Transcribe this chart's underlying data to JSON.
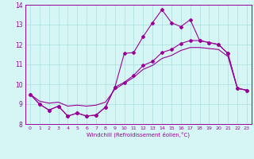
{
  "xlabel": "Windchill (Refroidissement éolien,°C)",
  "bg_color": "#d6f5f5",
  "grid_color": "#aadddd",
  "line_color": "#990099",
  "xlim": [
    -0.5,
    23.5
  ],
  "ylim": [
    8,
    14
  ],
  "yticks": [
    8,
    9,
    10,
    11,
    12,
    13,
    14
  ],
  "xticks": [
    0,
    1,
    2,
    3,
    4,
    5,
    6,
    7,
    8,
    9,
    10,
    11,
    12,
    13,
    14,
    15,
    16,
    17,
    18,
    19,
    20,
    21,
    22,
    23
  ],
  "hours": [
    0,
    1,
    2,
    3,
    4,
    5,
    6,
    7,
    8,
    9,
    10,
    11,
    12,
    13,
    14,
    15,
    16,
    17,
    18,
    19,
    20,
    21,
    22,
    23
  ],
  "temp": [
    9.5,
    9.0,
    8.7,
    8.9,
    8.4,
    8.55,
    8.4,
    8.45,
    8.85,
    9.85,
    11.55,
    11.6,
    12.4,
    13.1,
    13.75,
    13.1,
    12.9,
    13.25,
    12.2,
    12.1,
    12.0,
    11.55,
    9.8,
    9.7
  ],
  "windchill": [
    9.5,
    9.0,
    8.7,
    8.9,
    8.4,
    8.55,
    8.4,
    8.45,
    8.85,
    9.85,
    10.1,
    10.45,
    10.95,
    11.15,
    11.6,
    11.75,
    12.05,
    12.2,
    12.2,
    12.1,
    12.0,
    11.55,
    9.8,
    9.7
  ],
  "smoothline": [
    9.5,
    9.15,
    9.05,
    9.1,
    8.9,
    8.95,
    8.9,
    8.95,
    9.1,
    9.75,
    10.05,
    10.35,
    10.75,
    10.95,
    11.3,
    11.45,
    11.7,
    11.85,
    11.85,
    11.8,
    11.75,
    11.4,
    9.8,
    9.7
  ]
}
